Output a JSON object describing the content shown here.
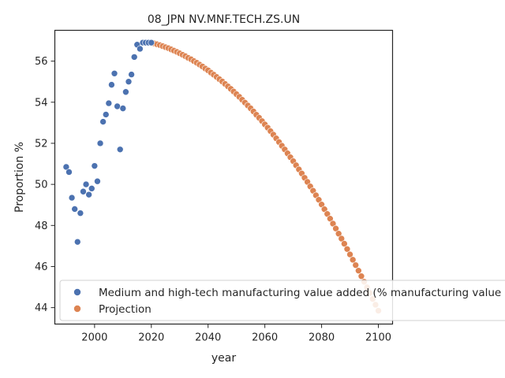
{
  "chart_data": {
    "type": "scatter",
    "title": "08_JPN NV.MNF.TECH.ZS.UN",
    "xlabel": "year",
    "ylabel": "Proportion %",
    "xlim": [
      1986,
      2105
    ],
    "ylim": [
      43.2,
      57.5
    ],
    "xticks": [
      2000,
      2020,
      2040,
      2060,
      2080,
      2100
    ],
    "yticks": [
      44,
      46,
      48,
      50,
      52,
      54,
      56
    ],
    "grid": false,
    "legend_position": "lower-left",
    "series": [
      {
        "name": "Medium and high-tech manufacturing value added (% manufacturing value added)",
        "color": "#4c72b0",
        "points": [
          [
            1990,
            50.85
          ],
          [
            1991,
            50.6
          ],
          [
            1992,
            49.35
          ],
          [
            1993,
            48.8
          ],
          [
            1994,
            47.2
          ],
          [
            1995,
            48.6
          ],
          [
            1996,
            49.65
          ],
          [
            1997,
            50.0
          ],
          [
            1998,
            49.5
          ],
          [
            1999,
            49.8
          ],
          [
            2000,
            50.9
          ],
          [
            2001,
            50.15
          ],
          [
            2002,
            52.0
          ],
          [
            2003,
            53.05
          ],
          [
            2004,
            53.4
          ],
          [
            2005,
            53.95
          ],
          [
            2006,
            54.85
          ],
          [
            2007,
            55.4
          ],
          [
            2008,
            53.8
          ],
          [
            2009,
            51.7
          ],
          [
            2010,
            53.7
          ],
          [
            2011,
            54.5
          ],
          [
            2012,
            55.0
          ],
          [
            2013,
            55.35
          ],
          [
            2014,
            56.2
          ],
          [
            2015,
            56.8
          ],
          [
            2016,
            56.6
          ],
          [
            2017,
            56.9
          ],
          [
            2018,
            56.9
          ],
          [
            2019,
            56.9
          ],
          [
            2020,
            56.9
          ]
        ]
      },
      {
        "name": "Projection",
        "color": "#dd8452",
        "x_start": 2020,
        "x_end": 2100,
        "y_start": 56.9,
        "y_end": 43.85,
        "shape": "concave-down",
        "points": []
      }
    ]
  }
}
